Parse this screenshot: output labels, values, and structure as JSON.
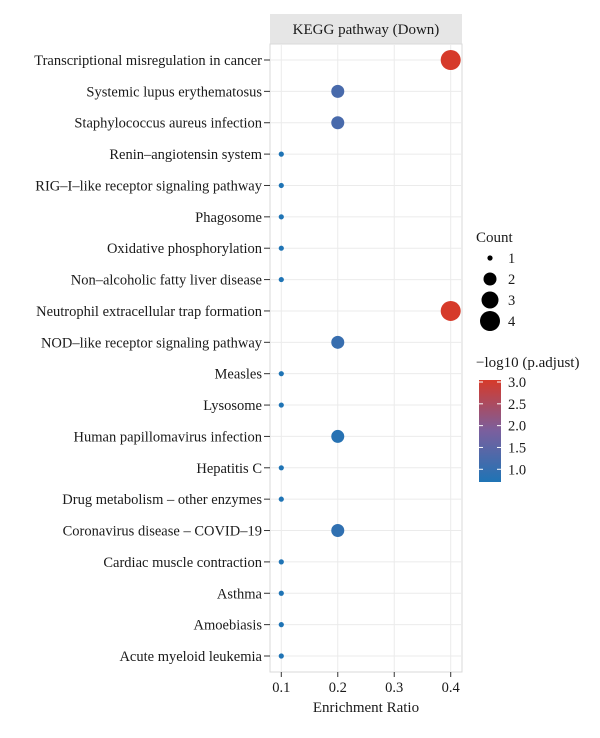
{
  "chart_data": {
    "type": "scatter",
    "title": "KEGG pathway (Down)",
    "xlabel": "Enrichment Ratio",
    "ylabel": "",
    "xlim": [
      0.08,
      0.42
    ],
    "x_ticks": [
      0.1,
      0.2,
      0.3,
      0.4
    ],
    "grid": true,
    "categories": [
      "Transcriptional misregulation in cancer",
      "Systemic lupus erythematosus",
      "Staphylococcus aureus infection",
      "Renin–angiotensin system",
      "RIG–I–like receptor signaling pathway",
      "Phagosome",
      "Oxidative phosphorylation",
      "Non–alcoholic fatty liver disease",
      "Neutrophil extracellular trap formation",
      "NOD–like receptor signaling pathway",
      "Measles",
      "Lysosome",
      "Human papillomavirus infection",
      "Hepatitis C",
      "Drug metabolism – other enzymes",
      "Coronavirus disease – COVID–19",
      "Cardiac muscle contraction",
      "Asthma",
      "Amoebiasis",
      "Acute myeloid leukemia"
    ],
    "points": [
      {
        "category": "Transcriptional misregulation in cancer",
        "x": 0.4,
        "count": 4,
        "neg_log10_padj": 3.0
      },
      {
        "category": "Systemic lupus erythematosus",
        "x": 0.2,
        "count": 2,
        "neg_log10_padj": 1.3
      },
      {
        "category": "Staphylococcus aureus infection",
        "x": 0.2,
        "count": 2,
        "neg_log10_padj": 1.3
      },
      {
        "category": "Renin–angiotensin system",
        "x": 0.1,
        "count": 1,
        "neg_log10_padj": 0.8
      },
      {
        "category": "RIG–I–like receptor signaling pathway",
        "x": 0.1,
        "count": 1,
        "neg_log10_padj": 0.8
      },
      {
        "category": "Phagosome",
        "x": 0.1,
        "count": 1,
        "neg_log10_padj": 0.8
      },
      {
        "category": "Oxidative phosphorylation",
        "x": 0.1,
        "count": 1,
        "neg_log10_padj": 0.8
      },
      {
        "category": "Non–alcoholic fatty liver disease",
        "x": 0.1,
        "count": 1,
        "neg_log10_padj": 0.8
      },
      {
        "category": "Neutrophil extracellular trap formation",
        "x": 0.4,
        "count": 4,
        "neg_log10_padj": 3.0
      },
      {
        "category": "NOD–like receptor signaling pathway",
        "x": 0.2,
        "count": 2,
        "neg_log10_padj": 1.1
      },
      {
        "category": "Measles",
        "x": 0.1,
        "count": 1,
        "neg_log10_padj": 0.8
      },
      {
        "category": "Lysosome",
        "x": 0.1,
        "count": 1,
        "neg_log10_padj": 0.8
      },
      {
        "category": "Human papillomavirus infection",
        "x": 0.2,
        "count": 2,
        "neg_log10_padj": 0.9
      },
      {
        "category": "Hepatitis C",
        "x": 0.1,
        "count": 1,
        "neg_log10_padj": 0.8
      },
      {
        "category": "Drug metabolism – other enzymes",
        "x": 0.1,
        "count": 1,
        "neg_log10_padj": 0.8
      },
      {
        "category": "Coronavirus disease – COVID–19",
        "x": 0.2,
        "count": 2,
        "neg_log10_padj": 1.0
      },
      {
        "category": "Cardiac muscle contraction",
        "x": 0.1,
        "count": 1,
        "neg_log10_padj": 0.8
      },
      {
        "category": "Asthma",
        "x": 0.1,
        "count": 1,
        "neg_log10_padj": 0.8
      },
      {
        "category": "Amoebiasis",
        "x": 0.1,
        "count": 1,
        "neg_log10_padj": 0.8
      },
      {
        "category": "Acute myeloid leukemia",
        "x": 0.1,
        "count": 1,
        "neg_log10_padj": 0.8
      }
    ],
    "size_legend": {
      "title": "Count",
      "values": [
        1,
        2,
        3,
        4
      ]
    },
    "color_legend": {
      "title": "−log10 (p.adjust)",
      "range": [
        0.8,
        3.0
      ],
      "ticks": [
        3.0,
        2.5,
        2.0,
        1.5,
        1.0
      ],
      "tick_labels": [
        "3.0",
        "2.5",
        "2.0",
        "1.5",
        "1.0"
      ],
      "low_color": "#1f74b5",
      "mid_color": "#7a5f9e",
      "high_color": "#d63a2a"
    },
    "legend_position": "right"
  }
}
